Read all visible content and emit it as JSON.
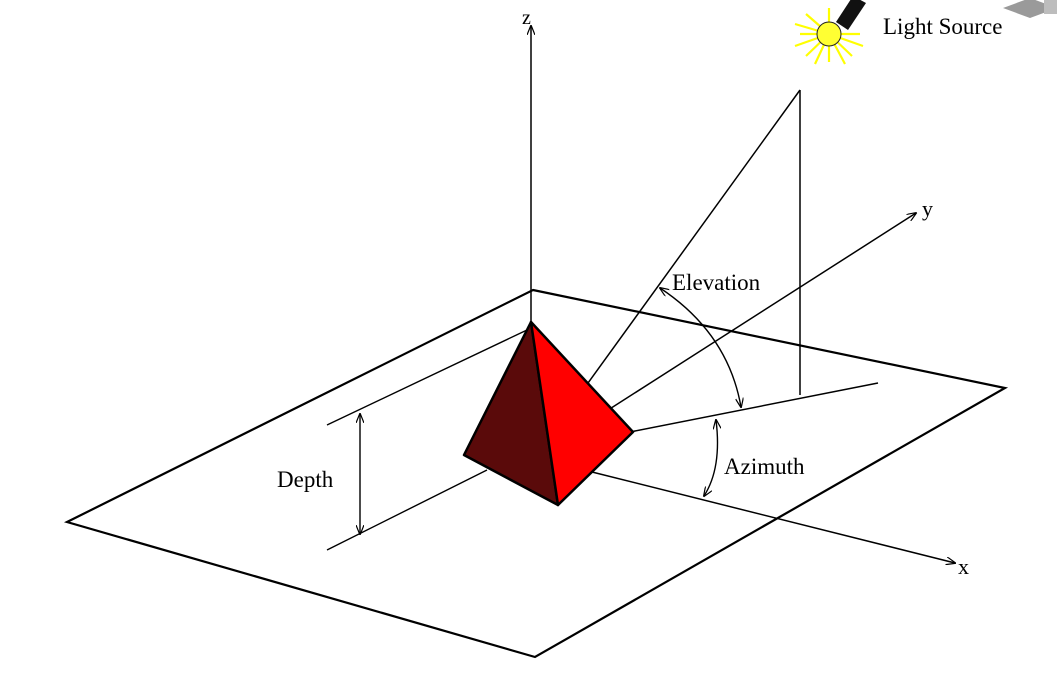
{
  "labels": {
    "z_axis": "z",
    "y_axis": "y",
    "x_axis": "x",
    "elevation": "Elevation",
    "azimuth": "Azimuth",
    "depth": "Depth",
    "light_source": "Light Source"
  },
  "colors": {
    "face_light": "#ff0000",
    "face_dark": "#5a0a0a",
    "lines": "#000000",
    "bulb": "#ffff33",
    "rays": "#ffff00",
    "background": "#ffffff"
  }
}
